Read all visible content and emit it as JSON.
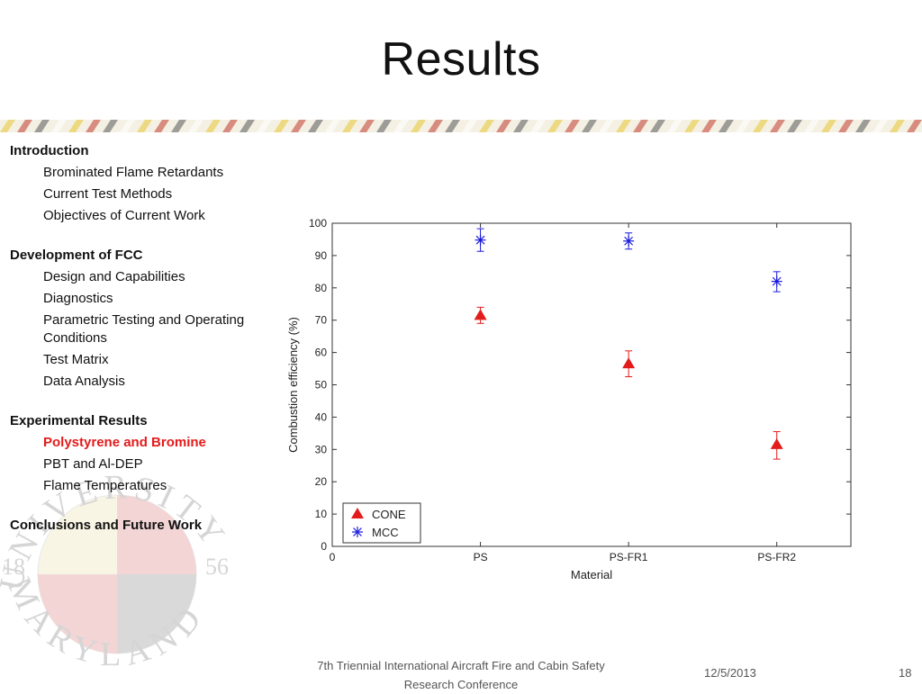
{
  "slide": {
    "title": "Results",
    "footer_conference": "7th Triennial International Aircraft Fire and Cabin Safety Research Conference",
    "footer_date": "12/5/2013",
    "footer_page": "18"
  },
  "seal": {
    "top_text": "UNIVERSITY OF",
    "bottom_text": "MARYLAND",
    "year_left": "18",
    "year_right": "56"
  },
  "nav": {
    "introduction": "Introduction",
    "intro_items": [
      "Brominated Flame Retardants",
      "Current Test Methods",
      "Objectives of Current Work"
    ],
    "development": "Development of FCC",
    "dev_items": [
      "Design and Capabilities",
      "Diagnostics",
      "Parametric Testing and Operating Conditions",
      "Test Matrix",
      "Data Analysis"
    ],
    "experimental": "Experimental Results",
    "exp_items": [
      "Polystyrene and Bromine",
      "PBT and Al-DEP",
      "Flame Temperatures"
    ],
    "conclusions": "Conclusions and Future Work"
  },
  "colors": {
    "cone": "#e31b1b",
    "mcc": "#1a1adb",
    "active_nav": "#e31b1b"
  },
  "chart_data": {
    "type": "scatter",
    "xlabel": "Material",
    "ylabel": "Combustion efficiency (%)",
    "x_ticks": [
      "0",
      "PS",
      "PS-FR1",
      "PS-FR2"
    ],
    "y_ticks": [
      "0",
      "10",
      "20",
      "30",
      "40",
      "50",
      "60",
      "70",
      "80",
      "90",
      "100"
    ],
    "xlim": [
      0,
      3.5
    ],
    "ylim": [
      0,
      100
    ],
    "legend_position": "bottom-left",
    "series": [
      {
        "name": "CONE",
        "marker": "triangle",
        "x": [
          1,
          2,
          3
        ],
        "y": [
          71.5,
          56.5,
          31.5
        ],
        "err_low": [
          2.5,
          4,
          4.5
        ],
        "err_high": [
          2.5,
          4,
          4
        ]
      },
      {
        "name": "MCC",
        "marker": "asterisk",
        "x": [
          1,
          2,
          3
        ],
        "y": [
          94.8,
          94.5,
          82
        ],
        "err_low": [
          3.5,
          2.5,
          3.2
        ],
        "err_high": [
          3.5,
          2.5,
          3
        ]
      }
    ]
  }
}
